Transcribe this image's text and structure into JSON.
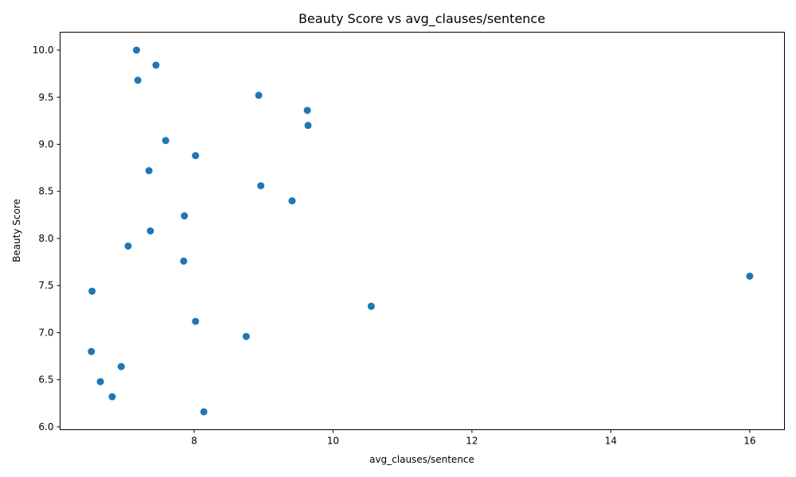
{
  "chart_data": {
    "type": "scatter",
    "title": "Beauty Score vs avg_clauses/sentence",
    "xlabel": "avg_clauses/sentence",
    "ylabel": "Beauty Score",
    "xlim": [
      6.07,
      16.5
    ],
    "ylim": [
      5.97,
      10.19
    ],
    "x_ticks": [
      8,
      10,
      12,
      14,
      16
    ],
    "x_tick_labels": [
      "8",
      "10",
      "12",
      "14",
      "16"
    ],
    "y_ticks": [
      6.0,
      6.5,
      7.0,
      7.5,
      8.0,
      8.5,
      9.0,
      9.5,
      10.0
    ],
    "y_tick_labels": [
      "6.0",
      "6.5",
      "7.0",
      "7.5",
      "8.0",
      "8.5",
      "9.0",
      "9.5",
      "10.0"
    ],
    "grid": false,
    "marker_color": "#1f77b4",
    "points": [
      {
        "x": 7.17,
        "y": 10.0
      },
      {
        "x": 7.45,
        "y": 9.84
      },
      {
        "x": 7.19,
        "y": 9.68
      },
      {
        "x": 8.93,
        "y": 9.52
      },
      {
        "x": 9.63,
        "y": 9.36
      },
      {
        "x": 9.64,
        "y": 9.2
      },
      {
        "x": 7.59,
        "y": 9.04
      },
      {
        "x": 8.02,
        "y": 8.88
      },
      {
        "x": 7.35,
        "y": 8.72
      },
      {
        "x": 8.96,
        "y": 8.56
      },
      {
        "x": 9.41,
        "y": 8.4
      },
      {
        "x": 7.86,
        "y": 8.24
      },
      {
        "x": 7.37,
        "y": 8.08
      },
      {
        "x": 7.05,
        "y": 7.92
      },
      {
        "x": 7.85,
        "y": 7.76
      },
      {
        "x": 16.0,
        "y": 7.6
      },
      {
        "x": 6.53,
        "y": 7.44
      },
      {
        "x": 10.55,
        "y": 7.28
      },
      {
        "x": 8.02,
        "y": 7.12
      },
      {
        "x": 8.75,
        "y": 6.96
      },
      {
        "x": 6.52,
        "y": 6.8
      },
      {
        "x": 6.95,
        "y": 6.64
      },
      {
        "x": 6.65,
        "y": 6.48
      },
      {
        "x": 6.82,
        "y": 6.32
      },
      {
        "x": 8.14,
        "y": 6.16
      }
    ]
  }
}
